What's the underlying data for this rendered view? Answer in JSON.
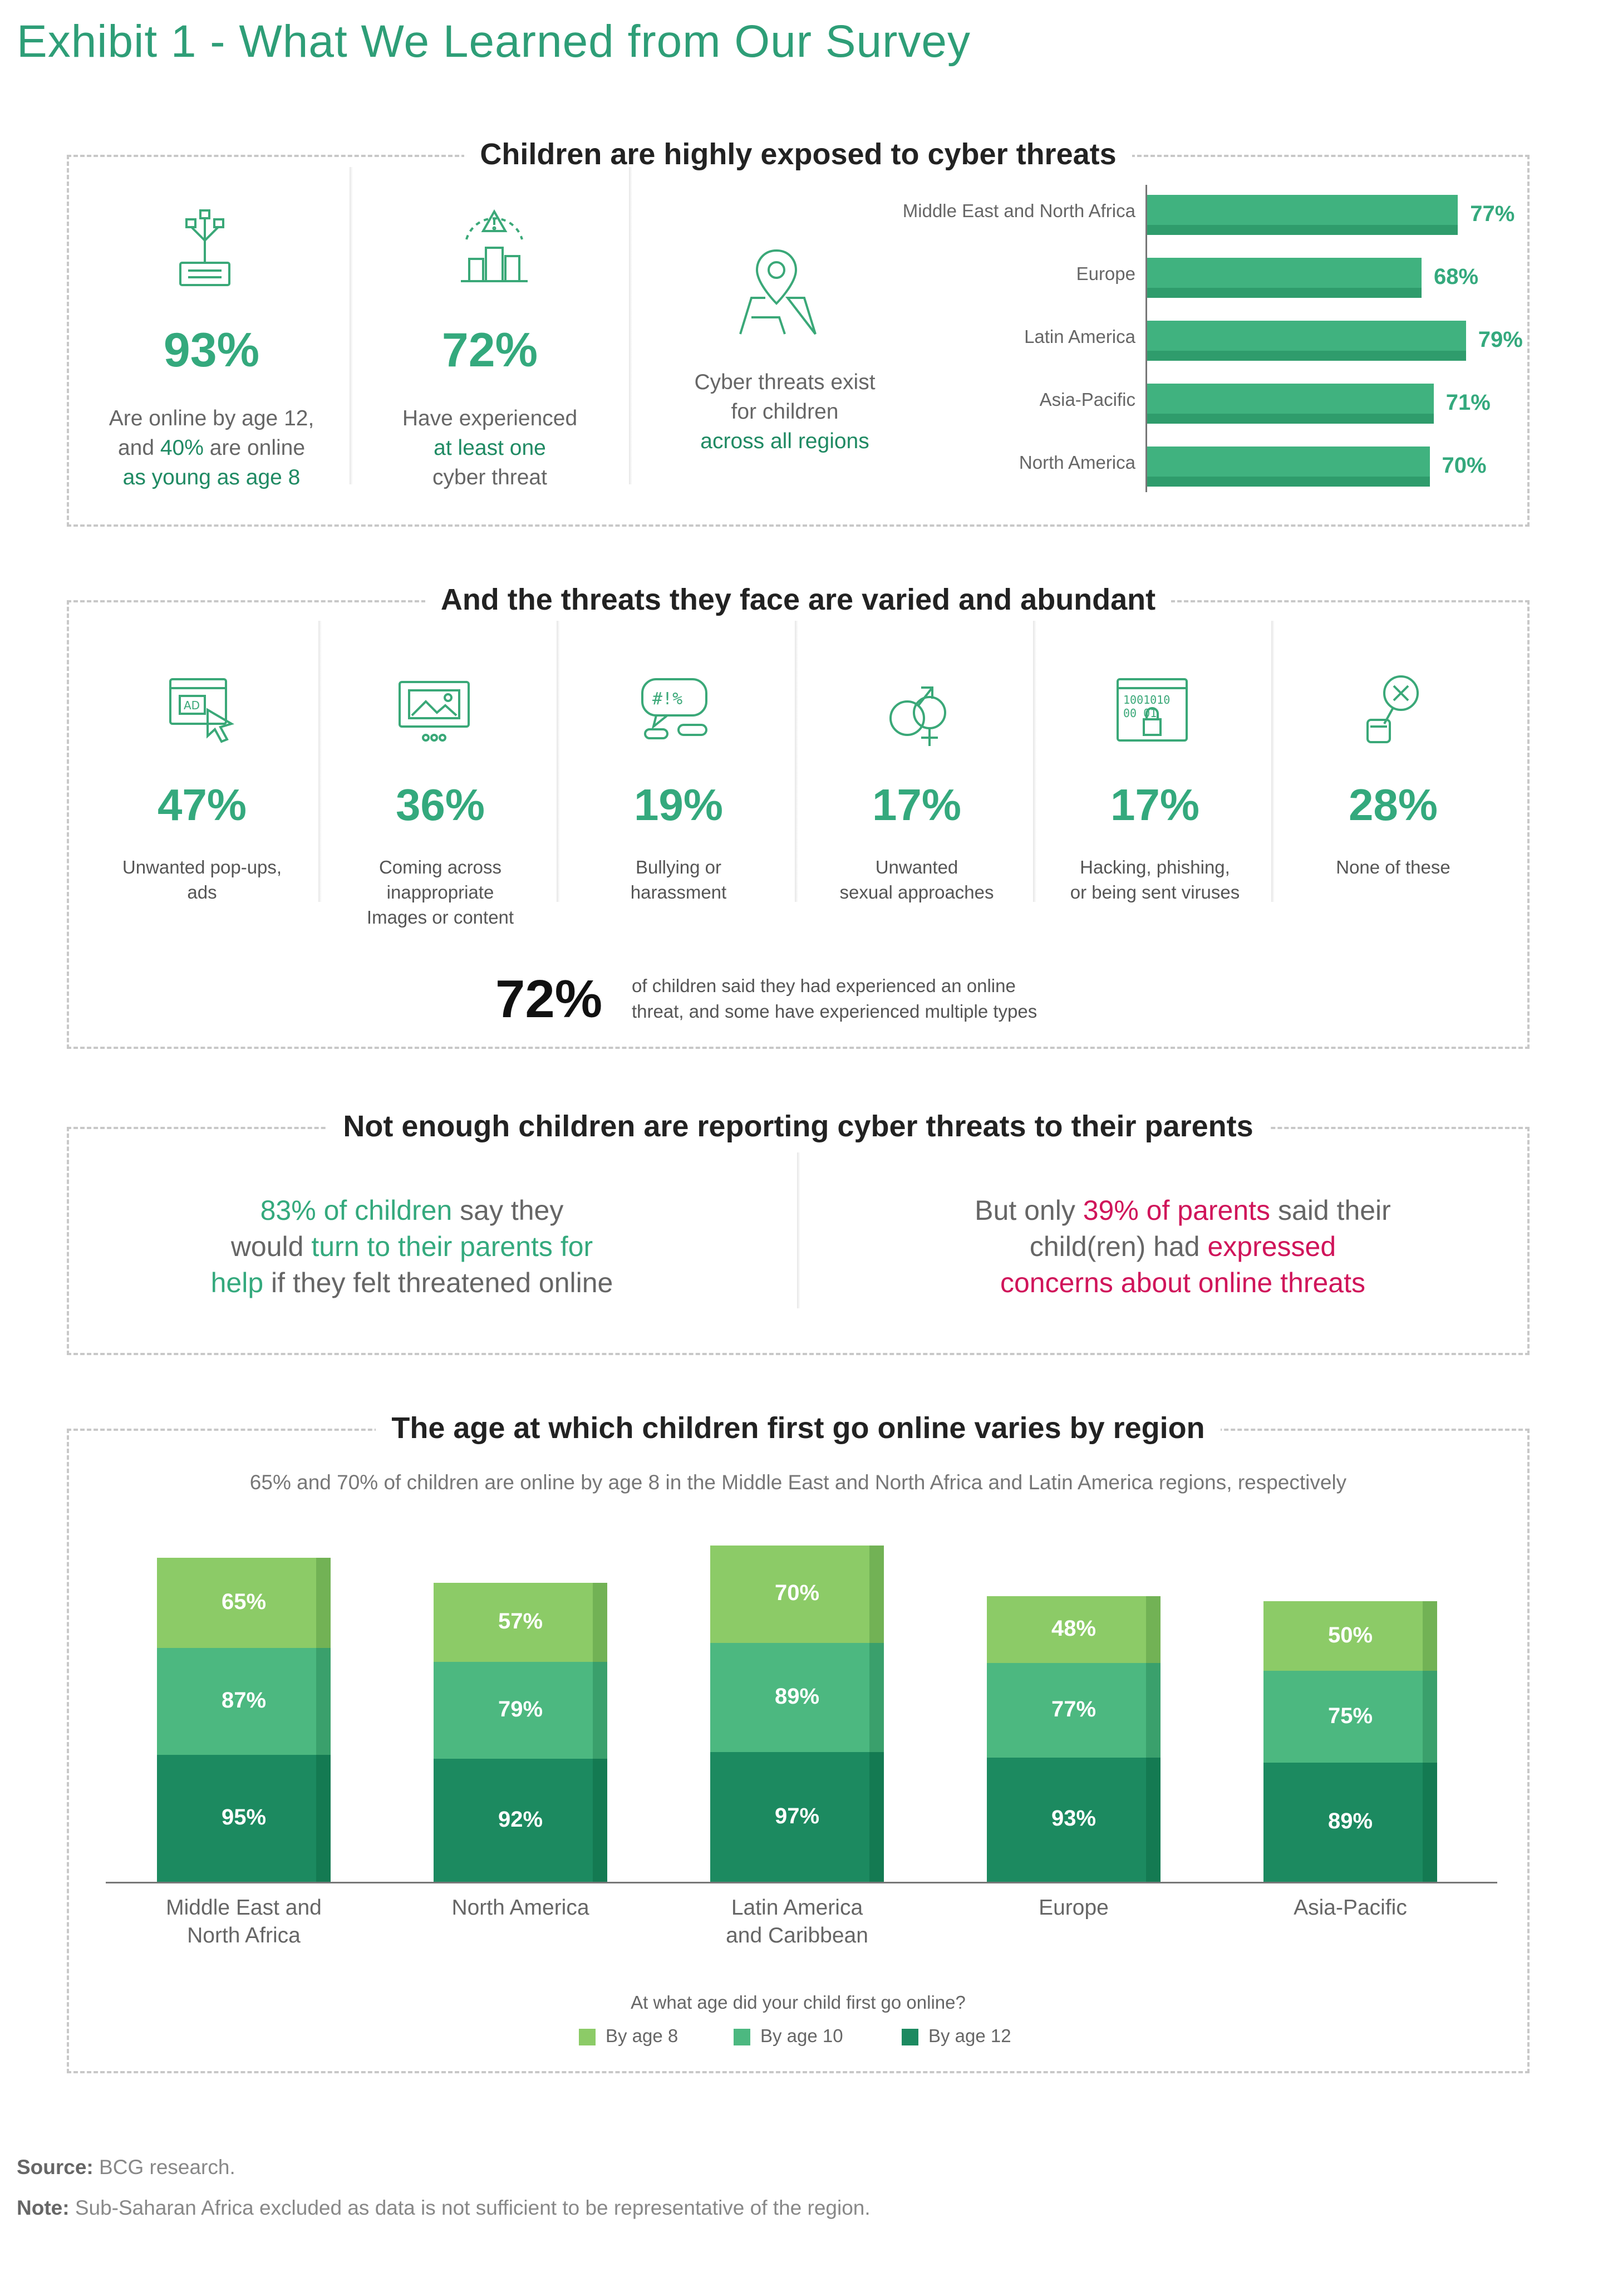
{
  "title": "Exhibit 1 - What We Learned from Our Survey",
  "section1": {
    "heading": "Children are highly exposed to cyber threats",
    "stat1": {
      "pct": "93%",
      "line1": "Are online by age 12,",
      "line2_pre": "and ",
      "line2_hl": "40%",
      "line2_post": " are online",
      "line3_hl": "as young as age 8"
    },
    "stat2": {
      "pct": "72%",
      "line1": "Have experienced",
      "line2_hl": "at least one",
      "line3": "cyber threat"
    },
    "regions": {
      "line1": "Cyber threats exist",
      "line2": "for children",
      "line3_hl": "across all regions"
    },
    "bars": [
      {
        "label": "Middle East and North Africa",
        "value": 77,
        "text": "77%"
      },
      {
        "label": "Europe",
        "value": 68,
        "text": "68%"
      },
      {
        "label": "Latin America",
        "value": 79,
        "text": "79%"
      },
      {
        "label": "Asia-Pacific",
        "value": 71,
        "text": "71%"
      },
      {
        "label": "North America",
        "value": 70,
        "text": "70%"
      }
    ]
  },
  "section2": {
    "heading": "And the threats they face are varied and abundant",
    "threats": [
      {
        "pct": "47%",
        "l1": "Unwanted pop-ups,",
        "l2": "ads",
        "l3": "",
        "icon": "ad-popup-icon"
      },
      {
        "pct": "36%",
        "l1": "Coming across",
        "l2": "inappropriate",
        "l3": "Images or content",
        "icon": "image-screen-icon"
      },
      {
        "pct": "19%",
        "l1": "Bullying or",
        "l2": "harassment",
        "l3": "",
        "icon": "angry-speech-icon"
      },
      {
        "pct": "17%",
        "l1": "Unwanted",
        "l2": "sexual approaches",
        "l3": "",
        "icon": "gender-symbols-icon"
      },
      {
        "pct": "17%",
        "l1": "Hacking, phishing,",
        "l2": "or being sent viruses",
        "l3": "",
        "icon": "binary-lock-icon"
      },
      {
        "pct": "28%",
        "l1": "None of these",
        "l2": "",
        "l3": "",
        "icon": "magnifier-x-icon"
      }
    ],
    "summary_pct": "72%",
    "summary_l1": "of children said they had experienced an online",
    "summary_l2": "threat, and some have experienced multiple types"
  },
  "section3": {
    "heading": "Not enough children are reporting cyber threats to their parents",
    "left": {
      "hl1": "83% of children",
      "t1": " say they",
      "t2": "would ",
      "hl2": "turn to their parents for",
      "hl3": "help",
      "t3": " if they felt threatened online"
    },
    "right": {
      "t1": "But only ",
      "hl1": "39% of parents",
      "t2": " said their",
      "t3": "child(ren) had ",
      "hl2": "expressed",
      "hl3": "concerns about online threats"
    }
  },
  "section4": {
    "heading": "The age at which children first go online varies by region",
    "subtitle": "65% and 70% of children are online by age 8 in the Middle East and North Africa and Latin America regions, respectively",
    "legend_title": "At what age did your child first go online?"
  },
  "chart_data": {
    "type": "bar",
    "stacked": "overlapping-cumulative",
    "categories": [
      "Middle East and\nNorth Africa",
      "North America",
      "Latin America\nand Caribbean",
      "Europe",
      "Asia-Pacific"
    ],
    "series": [
      {
        "name": "By age 8",
        "values": [
          65,
          57,
          70,
          48,
          50
        ],
        "color": "#8ccb67"
      },
      {
        "name": "By age 10",
        "values": [
          87,
          79,
          89,
          77,
          75
        ],
        "color": "#4cb880"
      },
      {
        "name": "By age 12",
        "values": [
          95,
          92,
          97,
          93,
          89
        ],
        "color": "#1c8a60"
      }
    ],
    "legend_position": "bottom"
  },
  "colors": {
    "accent": "#34a97d",
    "dark_green": "#1f8a63",
    "red": "#d0145a"
  },
  "footer": {
    "source_label": "Source:",
    "source": " BCG research.",
    "note_label": "Note:",
    "note": " Sub-Saharan Africa excluded as data is not sufficient to be representative of the region."
  }
}
